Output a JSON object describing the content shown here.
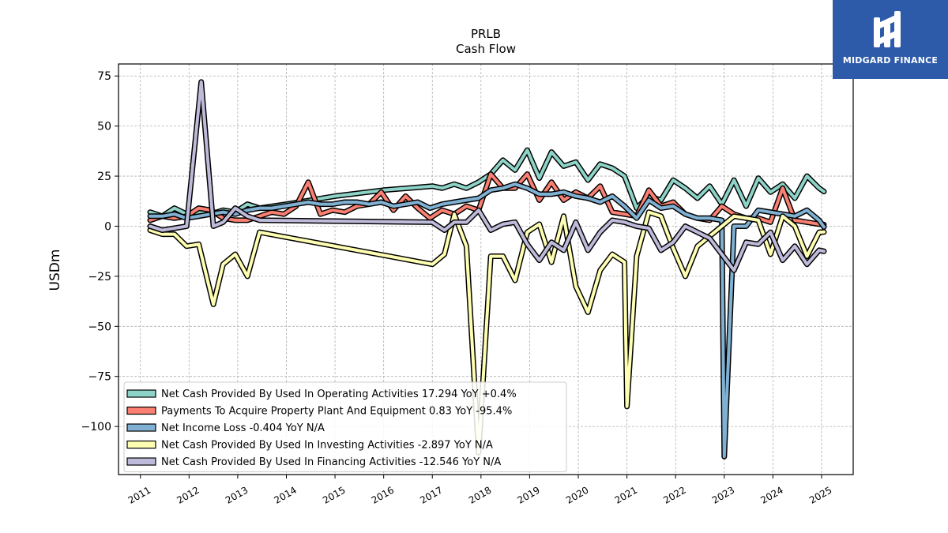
{
  "chart_data": {
    "type": "line",
    "title": "PRLB",
    "subtitle": "Cash Flow",
    "ylabel": "USDm",
    "xlabel": "",
    "ylim": [
      -124,
      81
    ],
    "xlim": [
      2010.55,
      2025.65
    ],
    "yticks": [
      75,
      50,
      25,
      0,
      -25,
      -50,
      -75,
      -100
    ],
    "ytick_labels": [
      "75",
      "50",
      "25",
      "0",
      "−25",
      "−50",
      "−75",
      "−100"
    ],
    "xticks": [
      2011,
      2012,
      2013,
      2014,
      2015,
      2016,
      2017,
      2018,
      2019,
      2020,
      2021,
      2022,
      2023,
      2024,
      2025
    ],
    "xtick_labels": [
      "2011",
      "2012",
      "2013",
      "2014",
      "2015",
      "2016",
      "2017",
      "2018",
      "2019",
      "2020",
      "2021",
      "2022",
      "2023",
      "2024",
      "2025"
    ],
    "grid": true,
    "legend_position": "lower-left",
    "series": [
      {
        "name": "Net Cash Provided By Used In Operating Activities",
        "legend_label": "Net Cash Provided By Used In Operating Activities  17.294 YoY +0.4%",
        "color": "#8dd3c7",
        "x": [
          2011.2,
          2011.45,
          2011.7,
          2011.95,
          2012.2,
          2012.45,
          2012.7,
          2012.95,
          2013.2,
          2013.45,
          2014.0,
          2015.0,
          2016.0,
          2017.0,
          2017.2,
          2017.45,
          2017.7,
          2017.95,
          2018.2,
          2018.45,
          2018.7,
          2018.95,
          2019.2,
          2019.45,
          2019.7,
          2019.95,
          2020.2,
          2020.45,
          2020.7,
          2020.95,
          2021.2,
          2021.45,
          2021.7,
          2021.95,
          2022.2,
          2022.45,
          2022.7,
          2022.95,
          2023.2,
          2023.45,
          2023.7,
          2023.95,
          2024.2,
          2024.45,
          2024.7,
          2024.95,
          2025.05
        ],
        "values": [
          7,
          5,
          9,
          6,
          7,
          6,
          8,
          7,
          11,
          9,
          11,
          15,
          18,
          20,
          19,
          21,
          19,
          22,
          26,
          33,
          28,
          38,
          24,
          37,
          30,
          32,
          23,
          31,
          29,
          25,
          9,
          15,
          13,
          23,
          19,
          14,
          20,
          11,
          23,
          10,
          24,
          17,
          21,
          14,
          25,
          19,
          17.3
        ]
      },
      {
        "name": "Payments To Acquire Property Plant And Equipment",
        "legend_label": "Payments To Acquire Property Plant And Equipment  0.83 YoY -95.4%",
        "color": "#fb8072",
        "x": [
          2011.2,
          2011.45,
          2011.7,
          2011.95,
          2012.2,
          2012.45,
          2012.7,
          2012.95,
          2013.2,
          2013.45,
          2013.7,
          2013.95,
          2014.2,
          2014.45,
          2014.7,
          2014.95,
          2015.2,
          2015.45,
          2015.7,
          2015.95,
          2016.2,
          2016.45,
          2016.7,
          2016.95,
          2017.2,
          2017.45,
          2017.7,
          2017.95,
          2018.2,
          2018.45,
          2018.7,
          2018.95,
          2019.2,
          2019.45,
          2019.7,
          2019.95,
          2020.2,
          2020.45,
          2020.7,
          2020.95,
          2021.2,
          2021.45,
          2021.7,
          2021.95,
          2022.2,
          2022.45,
          2022.7,
          2022.95,
          2023.2,
          2023.45,
          2023.7,
          2023.95,
          2024.2,
          2024.45,
          2024.7,
          2024.95,
          2025.05
        ],
        "values": [
          3,
          5,
          4,
          5,
          9,
          8,
          4,
          3,
          3,
          5,
          7,
          6,
          10,
          22,
          6,
          8,
          7,
          10,
          11,
          17,
          8,
          15,
          9,
          4,
          8,
          6,
          10,
          8,
          26,
          19,
          19,
          26,
          13,
          22,
          13,
          17,
          14,
          20,
          7,
          6,
          5,
          18,
          10,
          12,
          6,
          4,
          3,
          10,
          6,
          4,
          4,
          2,
          19,
          3,
          2,
          1,
          0.83
        ]
      },
      {
        "name": "Net Income Loss",
        "legend_label": "Net Income Loss  -0.404 YoY N/A",
        "color": "#80b1d3",
        "x": [
          2011.2,
          2011.45,
          2011.7,
          2011.95,
          2012.2,
          2012.45,
          2012.7,
          2012.95,
          2013.2,
          2013.45,
          2013.7,
          2013.95,
          2014.2,
          2014.45,
          2014.7,
          2014.95,
          2015.2,
          2015.45,
          2015.7,
          2015.95,
          2016.2,
          2016.45,
          2016.7,
          2016.95,
          2017.2,
          2017.45,
          2017.7,
          2017.95,
          2018.2,
          2018.45,
          2018.7,
          2018.95,
          2019.2,
          2019.45,
          2019.7,
          2019.95,
          2020.2,
          2020.45,
          2020.7,
          2020.95,
          2021.2,
          2021.45,
          2021.7,
          2021.95,
          2022.2,
          2022.45,
          2022.7,
          2022.95,
          2023.0,
          2023.2,
          2023.45,
          2023.7,
          2023.95,
          2024.2,
          2024.45,
          2024.7,
          2024.95,
          2025.05
        ],
        "values": [
          5,
          5,
          6,
          4,
          5,
          6,
          7,
          6,
          8,
          9,
          9,
          10,
          11,
          12,
          11,
          11,
          12,
          12,
          11,
          12,
          10,
          11,
          12,
          9,
          11,
          12,
          13,
          14,
          18,
          19,
          21,
          19,
          16,
          16,
          17,
          15,
          14,
          12,
          15,
          10,
          4,
          13,
          9,
          10,
          6,
          4,
          4,
          3,
          -115,
          0,
          0,
          8,
          7,
          6,
          5,
          8,
          3,
          -0.4
        ]
      },
      {
        "name": "Net Cash Provided By Used In Investing Activities",
        "legend_label": "Net Cash Provided By Used In Investing Activities  -2.897 YoY N/A",
        "color": "#ffffb3",
        "x": [
          2011.2,
          2011.45,
          2011.7,
          2011.95,
          2012.2,
          2012.5,
          2012.7,
          2012.95,
          2013.2,
          2013.45,
          2017.0,
          2017.25,
          2017.45,
          2017.7,
          2017.95,
          2018.2,
          2018.45,
          2018.7,
          2018.95,
          2019.2,
          2019.45,
          2019.7,
          2019.95,
          2020.2,
          2020.45,
          2020.7,
          2020.95,
          2021.0,
          2021.2,
          2021.45,
          2021.7,
          2021.95,
          2022.2,
          2022.45,
          2022.7,
          2022.95,
          2023.2,
          2023.45,
          2023.7,
          2023.95,
          2024.2,
          2024.45,
          2024.7,
          2024.95,
          2025.05
        ],
        "values": [
          -2,
          -4,
          -4,
          -10,
          -9,
          -39,
          -19,
          -14,
          -25,
          -3,
          -19,
          -14,
          6,
          -10,
          -113,
          -15,
          -15,
          -27,
          -3,
          1,
          -18,
          5,
          -30,
          -43,
          -22,
          -14,
          -18,
          -90,
          -15,
          7,
          5,
          -11,
          -25,
          -10,
          -5,
          0,
          5,
          4,
          3,
          -14,
          5,
          0,
          -15,
          -3,
          -2.9
        ]
      },
      {
        "name": "Net Cash Provided By Used In Financing Activities",
        "legend_label": "Net Cash Provided By Used In Financing Activities  -12.546 YoY N/A",
        "color": "#bebada",
        "x": [
          2011.2,
          2011.45,
          2011.7,
          2011.95,
          2012.25,
          2012.5,
          2012.7,
          2012.95,
          2013.2,
          2013.45,
          2017.0,
          2017.25,
          2017.45,
          2017.7,
          2017.95,
          2018.2,
          2018.45,
          2018.7,
          2018.95,
          2019.2,
          2019.45,
          2019.7,
          2019.95,
          2020.2,
          2020.45,
          2020.7,
          2020.95,
          2021.2,
          2021.45,
          2021.7,
          2021.95,
          2022.2,
          2022.45,
          2022.7,
          2022.95,
          2023.2,
          2023.45,
          2023.7,
          2023.95,
          2024.2,
          2024.45,
          2024.7,
          2024.95,
          2025.05
        ],
        "values": [
          0,
          -2,
          -1,
          0,
          72,
          0,
          2,
          9,
          5,
          3,
          2,
          -2,
          2,
          2,
          8,
          -2,
          1,
          2,
          -9,
          -17,
          -8,
          -12,
          2,
          -12,
          -3,
          3,
          2,
          0,
          -1,
          -12,
          -8,
          0,
          -3,
          -6,
          -14,
          -22,
          -8,
          -9,
          -3,
          -17,
          -10,
          -19,
          -12,
          -12.5
        ]
      }
    ]
  },
  "logo": {
    "text": "MIDGARD FINANCE",
    "background": "#2d5baa"
  }
}
